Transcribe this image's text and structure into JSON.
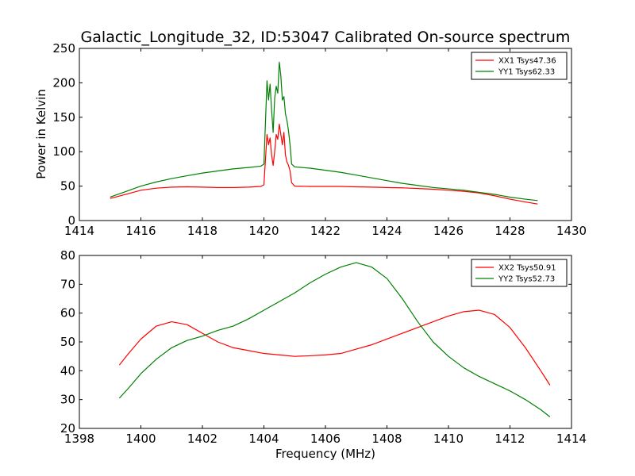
{
  "figure": {
    "title": "Galactic_Longitude_32, ID:53047 Calibrated On-source spectrum",
    "xlabel": "Frequency (MHz)",
    "ylabel_top": "Power in Kelvin"
  },
  "chart_data": [
    {
      "type": "line",
      "name": "top-panel",
      "title": "Galactic_Longitude_32, ID:53047 Calibrated On-source spectrum",
      "xlabel": "",
      "ylabel": "Power in Kelvin",
      "xlim": [
        1414,
        1430
      ],
      "ylim": [
        0,
        250
      ],
      "xticks": [
        1414,
        1416,
        1418,
        1420,
        1422,
        1424,
        1426,
        1428,
        1430
      ],
      "yticks": [
        0,
        50,
        100,
        150,
        200,
        250
      ],
      "grid": false,
      "legend": "top-right",
      "series": [
        {
          "name": "XX1 Tsys47.36",
          "color": "#ff0000",
          "x": [
            1415.0,
            1415.5,
            1416.0,
            1416.5,
            1417.0,
            1417.5,
            1418.0,
            1418.5,
            1419.0,
            1419.5,
            1419.9,
            1420.0,
            1420.1,
            1420.15,
            1420.2,
            1420.25,
            1420.3,
            1420.35,
            1420.4,
            1420.45,
            1420.5,
            1420.55,
            1420.6,
            1420.65,
            1420.7,
            1420.75,
            1420.8,
            1420.85,
            1420.9,
            1421.0,
            1421.5,
            1422.0,
            1422.5,
            1423.0,
            1423.5,
            1424.0,
            1424.5,
            1425.0,
            1425.5,
            1426.0,
            1426.5,
            1427.0,
            1427.5,
            1428.0,
            1428.5,
            1428.9
          ],
          "y": [
            32,
            38,
            44,
            47,
            48.5,
            49,
            48.5,
            48,
            48,
            48.5,
            49.5,
            52,
            125,
            110,
            120,
            95,
            80,
            100,
            125,
            118,
            140,
            125,
            110,
            128,
            95,
            85,
            80,
            72,
            55,
            50,
            49.5,
            49.5,
            49.5,
            49,
            48.5,
            48,
            47.5,
            46.5,
            45.5,
            44,
            42.5,
            40,
            36,
            31,
            27,
            24
          ]
        },
        {
          "name": "YY1 Tsys62.33",
          "color": "#008000",
          "x": [
            1415.0,
            1415.5,
            1416.0,
            1416.5,
            1417.0,
            1417.5,
            1418.0,
            1418.5,
            1419.0,
            1419.5,
            1419.9,
            1420.0,
            1420.1,
            1420.15,
            1420.2,
            1420.25,
            1420.3,
            1420.35,
            1420.4,
            1420.45,
            1420.5,
            1420.55,
            1420.6,
            1420.65,
            1420.7,
            1420.75,
            1420.8,
            1420.85,
            1420.9,
            1421.0,
            1421.5,
            1422.0,
            1422.5,
            1423.0,
            1423.5,
            1424.0,
            1424.5,
            1425.0,
            1425.5,
            1426.0,
            1426.5,
            1427.0,
            1427.5,
            1428.0,
            1428.5,
            1428.9
          ],
          "y": [
            34,
            42,
            50,
            56,
            61,
            65,
            69,
            72,
            75,
            77,
            79,
            82,
            203,
            175,
            198,
            160,
            128,
            178,
            195,
            185,
            230,
            210,
            175,
            180,
            155,
            145,
            130,
            110,
            82,
            78,
            76,
            73,
            70,
            66,
            62,
            58,
            54,
            51,
            48,
            46,
            44,
            41,
            38,
            34,
            31,
            29
          ]
        }
      ]
    },
    {
      "type": "line",
      "name": "bottom-panel",
      "title": "",
      "xlabel": "Frequency (MHz)",
      "ylabel": "",
      "xlim": [
        1398,
        1414
      ],
      "ylim": [
        20,
        80
      ],
      "xticks": [
        1398,
        1400,
        1402,
        1404,
        1406,
        1408,
        1410,
        1412,
        1414
      ],
      "yticks": [
        20,
        30,
        40,
        50,
        60,
        70,
        80
      ],
      "grid": false,
      "legend": "top-right",
      "series": [
        {
          "name": "XX2 Tsys50.91",
          "color": "#ff0000",
          "x": [
            1399.3,
            1399.6,
            1400.0,
            1400.5,
            1401.0,
            1401.5,
            1402.0,
            1402.5,
            1403.0,
            1403.5,
            1404.0,
            1404.5,
            1405.0,
            1405.5,
            1406.0,
            1406.5,
            1407.0,
            1407.5,
            1408.0,
            1408.5,
            1409.0,
            1409.5,
            1410.0,
            1410.5,
            1411.0,
            1411.5,
            1412.0,
            1412.5,
            1413.0,
            1413.3
          ],
          "y": [
            42,
            46,
            51,
            55.5,
            57,
            56,
            53,
            50,
            48,
            47,
            46,
            45.5,
            45,
            45.2,
            45.5,
            46,
            47.5,
            49,
            51,
            53,
            55,
            57,
            59,
            60.5,
            61,
            59.5,
            55,
            48,
            40,
            35
          ]
        },
        {
          "name": "YY2 Tsys52.73",
          "color": "#008000",
          "x": [
            1399.3,
            1399.6,
            1400.0,
            1400.5,
            1401.0,
            1401.5,
            1402.0,
            1402.5,
            1403.0,
            1403.5,
            1404.0,
            1404.5,
            1405.0,
            1405.5,
            1406.0,
            1406.5,
            1407.0,
            1407.5,
            1408.0,
            1408.5,
            1409.0,
            1409.5,
            1410.0,
            1410.5,
            1411.0,
            1411.5,
            1412.0,
            1412.5,
            1413.0,
            1413.3
          ],
          "y": [
            30.5,
            34,
            39,
            44,
            48,
            50.5,
            52,
            54,
            55.5,
            58,
            61,
            64,
            67,
            70.5,
            73.5,
            76,
            77.5,
            76,
            72,
            65,
            57,
            50,
            45,
            41,
            38,
            35.5,
            33,
            30,
            26.5,
            24
          ]
        }
      ]
    }
  ]
}
